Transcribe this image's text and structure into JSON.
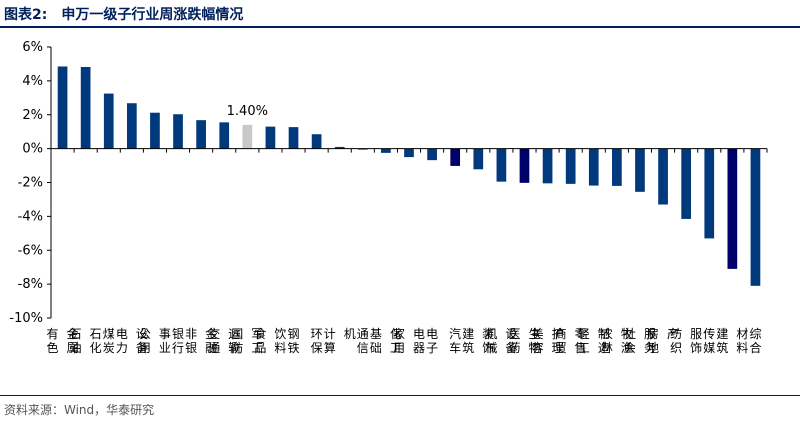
{
  "header": {
    "figure_no": "图表2:",
    "title": "申万一级子行业周涨跌幅情况"
  },
  "source": "资料来源：Wind，华泰研究",
  "colors": {
    "bar": "#003a7d",
    "bar_dark": "#00006b",
    "highlight": "#c8c8c8",
    "title": "#00205b",
    "axis": "#000000"
  },
  "chart_data": {
    "type": "bar",
    "title": "申万一级子行业周涨跌幅情况",
    "xlabel": "",
    "ylabel": "",
    "ylim": [
      -10,
      6
    ],
    "yticks": [
      6,
      4,
      2,
      0,
      -2,
      -4,
      -6,
      -8,
      -10
    ],
    "ytick_labels": [
      "6%",
      "4%",
      "2%",
      "0%",
      "-2%",
      "-4%",
      "-6%",
      "-8%",
      "-10%"
    ],
    "grid": false,
    "legend": "none",
    "categories": [
      "有色金属",
      "石油石化",
      "煤炭",
      "电力设备",
      "公用事业",
      "银行",
      "非银金融",
      "交通运输",
      "国防军工",
      "食品饮料",
      "钢铁",
      "环保",
      "计算机",
      "通信",
      "基础化工",
      "家用电器",
      "电子",
      "汽车",
      "建筑装饰",
      "机械设备",
      "医药生物",
      "美容护理",
      "商贸零售",
      "轻工制造",
      "农林牧渔",
      "社会服务",
      "房地产",
      "纺织服饰",
      "传媒",
      "建筑材料",
      "综合"
    ],
    "values": [
      4.85,
      4.82,
      3.25,
      2.68,
      2.12,
      2.03,
      1.68,
      1.55,
      1.4,
      1.3,
      1.27,
      0.85,
      0.1,
      -0.02,
      -0.25,
      -0.5,
      -0.68,
      -1.02,
      -1.22,
      -1.95,
      -2.02,
      -2.05,
      -2.08,
      -2.18,
      -2.2,
      -2.55,
      -3.3,
      -4.15,
      -5.3,
      -7.1,
      -8.1
    ],
    "bar_styles": [
      "normal",
      "normal",
      "normal",
      "normal",
      "normal",
      "normal",
      "normal",
      "normal",
      "highlight",
      "normal",
      "normal",
      "normal",
      "normal",
      "normal",
      "normal",
      "normal",
      "normal",
      "dark",
      "normal",
      "normal",
      "dark",
      "normal",
      "normal",
      "normal",
      "normal",
      "normal",
      "normal",
      "normal",
      "normal",
      "dark",
      "normal"
    ],
    "annotations": [
      {
        "category": "国防军工",
        "text": "1.40%"
      }
    ]
  }
}
